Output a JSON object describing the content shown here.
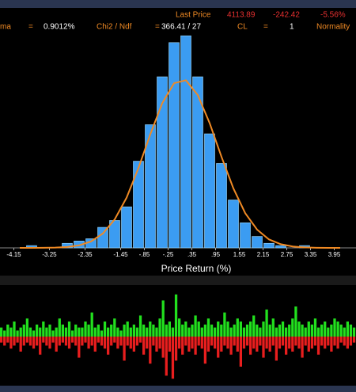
{
  "header": {
    "last_price_label": "Last Price",
    "last_price": "4113.89",
    "change": "-242.42",
    "change_pct": "-5.56%",
    "sigma_label": "ma",
    "sigma_eq": "=",
    "sigma": "0.9012%",
    "chi_label": "Chi2 / Ndf",
    "chi_eq": "=",
    "chi": "366.41 / 27",
    "cl_label": "CL",
    "cl_eq": "=",
    "cl": "1",
    "normality_label": "Normality"
  },
  "chart_data": [
    {
      "type": "histogram",
      "x_label": "Price Return (%)",
      "color": "#3b9cf2",
      "bins": [
        -4.15,
        -3.85,
        -3.55,
        -3.25,
        -2.95,
        -2.65,
        -2.35,
        -2.05,
        -1.75,
        -1.45,
        -1.15,
        -0.85,
        -0.55,
        -0.25,
        0.05,
        0.35,
        0.65,
        0.95,
        1.25,
        1.55,
        1.85,
        2.15,
        2.45,
        2.75,
        3.05,
        3.35,
        3.65,
        3.95,
        4.25
      ],
      "values": [
        0,
        1,
        0,
        0,
        2,
        3,
        4,
        9,
        12,
        18,
        38,
        54,
        75,
        90,
        93,
        75,
        50,
        37,
        21,
        11,
        5,
        2,
        1,
        0,
        1,
        0,
        0,
        0
      ],
      "fit": {
        "color": "#f08a24",
        "x": [
          -4.0,
          -3.7,
          -3.4,
          -3.1,
          -2.8,
          -2.5,
          -2.2,
          -1.9,
          -1.6,
          -1.3,
          -1.0,
          -0.7,
          -0.4,
          -0.1,
          0.2,
          0.5,
          0.8,
          1.1,
          1.4,
          1.7,
          2.0,
          2.3,
          2.6,
          2.9,
          3.2,
          3.5,
          3.8,
          4.1
        ],
        "values": [
          0,
          0.01,
          0.04,
          0.13,
          0.41,
          1.1,
          2.8,
          6.3,
          12.5,
          22.0,
          35.0,
          49.8,
          63.4,
          72.2,
          73.5,
          67.0,
          54.7,
          39.9,
          26.1,
          15.2,
          8.0,
          3.7,
          1.6,
          0.6,
          0.2,
          0.06,
          0.02,
          0
        ]
      },
      "xlim": [
        -4.5,
        4.5
      ],
      "ylim": [
        0,
        100
      ],
      "xticks": [
        -4.15,
        -3.25,
        -2.35,
        -1.45,
        {
          "value": -0.85,
          "label": "-.85"
        },
        {
          "value": -0.25,
          "label": "-.25"
        },
        {
          "value": 0.35,
          "label": ".35"
        },
        {
          "value": 0.95,
          "label": ".95"
        },
        1.55,
        2.15,
        2.75,
        3.35,
        3.95
      ]
    },
    {
      "type": "diverging-bar",
      "ylim": [
        -15,
        15
      ],
      "series": [
        {
          "color": "#22e01e",
          "values": [
            3,
            2,
            4,
            3,
            5,
            2,
            3,
            4,
            6,
            3,
            2,
            4,
            3,
            5,
            3,
            4,
            2,
            3,
            6,
            4,
            3,
            5,
            2,
            4,
            3,
            3,
            5,
            4,
            8,
            3,
            4,
            2,
            5,
            3,
            4,
            6,
            3,
            2,
            4,
            5,
            3,
            4,
            3,
            7,
            4,
            3,
            5,
            4,
            3,
            6,
            12,
            4,
            5,
            3,
            14,
            6,
            4,
            5,
            3,
            4,
            7,
            5,
            3,
            4,
            6,
            4,
            3,
            5,
            4,
            8,
            5,
            3,
            4,
            6,
            5,
            3,
            4,
            5,
            7,
            4,
            3,
            5,
            9,
            4,
            6,
            3,
            4,
            5,
            3,
            4,
            6,
            10,
            5,
            4,
            3,
            5,
            4,
            6,
            3,
            4,
            5,
            3,
            4,
            6,
            5,
            4,
            3,
            5,
            4,
            3
          ]
        },
        {
          "color": "#e81e1e",
          "values": [
            -2,
            -3,
            -2,
            -4,
            -3,
            -2,
            -5,
            -3,
            -2,
            -3,
            -4,
            -3,
            -6,
            -2,
            -3,
            -4,
            -2,
            -5,
            -3,
            -2,
            -3,
            -4,
            -2,
            -3,
            -7,
            -3,
            -2,
            -4,
            -3,
            -5,
            -2,
            -3,
            -4,
            -6,
            -3,
            -2,
            -4,
            -3,
            -8,
            -3,
            -4,
            -5,
            -3,
            -2,
            -6,
            -4,
            -9,
            -3,
            -5,
            -4,
            -7,
            -13,
            -5,
            -14,
            -8,
            -4,
            -6,
            -3,
            -5,
            -4,
            -6,
            -3,
            -4,
            -9,
            -5,
            -3,
            -4,
            -7,
            -5,
            -3,
            -4,
            -6,
            -3,
            -5,
            -10,
            -4,
            -3,
            -6,
            -4,
            -5,
            -3,
            -7,
            -4,
            -5,
            -3,
            -8,
            -4,
            -3,
            -6,
            -4,
            -5,
            -3,
            -4,
            -7,
            -3,
            -5,
            -4,
            -3,
            -6,
            -3,
            -4,
            -3,
            -5,
            -3,
            -4,
            -2,
            -3,
            -4,
            -3,
            -2
          ]
        }
      ]
    }
  ]
}
